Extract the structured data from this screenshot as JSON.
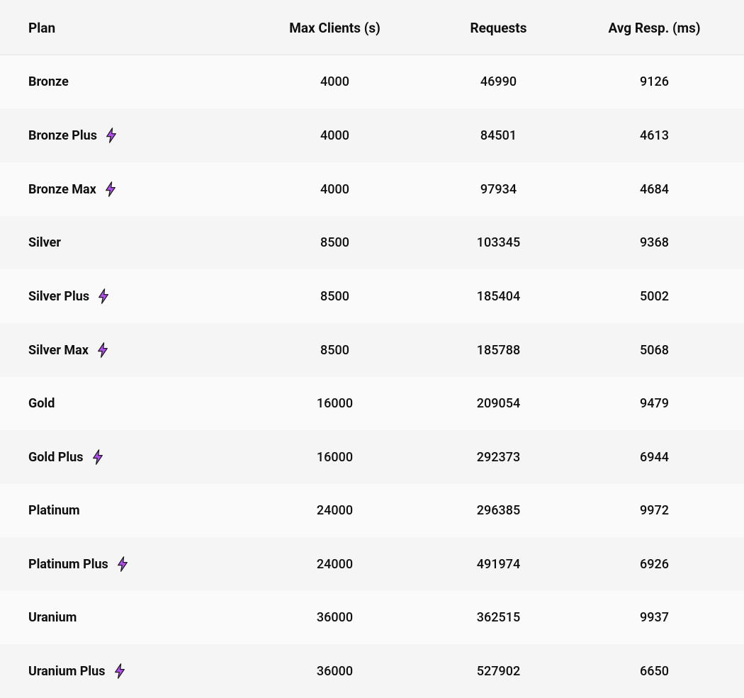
{
  "table": {
    "type": "table",
    "background_color": "#f5f5f5",
    "row_colors": {
      "odd": "#fafafa",
      "even": "#f5f5f5"
    },
    "header_border_color": "#e4e4e6",
    "text_color": "#0f0f10",
    "header_fontsize_pt": 14,
    "cell_fontsize_pt": 13,
    "bolt_icon": {
      "fill": "#b34df2",
      "stroke": "#1a1a1a"
    },
    "columns": [
      {
        "key": "plan",
        "label": "Plan",
        "align": "left",
        "width_pct": 34
      },
      {
        "key": "clients",
        "label": "Max Clients (s)",
        "align": "center",
        "width_pct": 22
      },
      {
        "key": "requests",
        "label": "Requests",
        "align": "center",
        "width_pct": 22
      },
      {
        "key": "resp",
        "label": "Avg Resp. (ms)",
        "align": "center",
        "width_pct": 22
      }
    ],
    "rows": [
      {
        "plan": "Bronze",
        "bolt": false,
        "clients": "4000",
        "requests": "46990",
        "resp": "9126"
      },
      {
        "plan": "Bronze Plus",
        "bolt": true,
        "clients": "4000",
        "requests": "84501",
        "resp": "4613"
      },
      {
        "plan": "Bronze Max",
        "bolt": true,
        "clients": "4000",
        "requests": "97934",
        "resp": "4684"
      },
      {
        "plan": "Silver",
        "bolt": false,
        "clients": "8500",
        "requests": "103345",
        "resp": "9368"
      },
      {
        "plan": "Silver Plus",
        "bolt": true,
        "clients": "8500",
        "requests": "185404",
        "resp": "5002"
      },
      {
        "plan": "Silver Max",
        "bolt": true,
        "clients": "8500",
        "requests": "185788",
        "resp": "5068"
      },
      {
        "plan": "Gold",
        "bolt": false,
        "clients": "16000",
        "requests": "209054",
        "resp": "9479"
      },
      {
        "plan": "Gold Plus",
        "bolt": true,
        "clients": "16000",
        "requests": "292373",
        "resp": "6944"
      },
      {
        "plan": "Platinum",
        "bolt": false,
        "clients": "24000",
        "requests": "296385",
        "resp": "9972"
      },
      {
        "plan": "Platinum Plus",
        "bolt": true,
        "clients": "24000",
        "requests": "491974",
        "resp": "6926"
      },
      {
        "plan": "Uranium",
        "bolt": false,
        "clients": "36000",
        "requests": "362515",
        "resp": "9937"
      },
      {
        "plan": "Uranium Plus",
        "bolt": true,
        "clients": "36000",
        "requests": "527902",
        "resp": "6650"
      }
    ]
  }
}
